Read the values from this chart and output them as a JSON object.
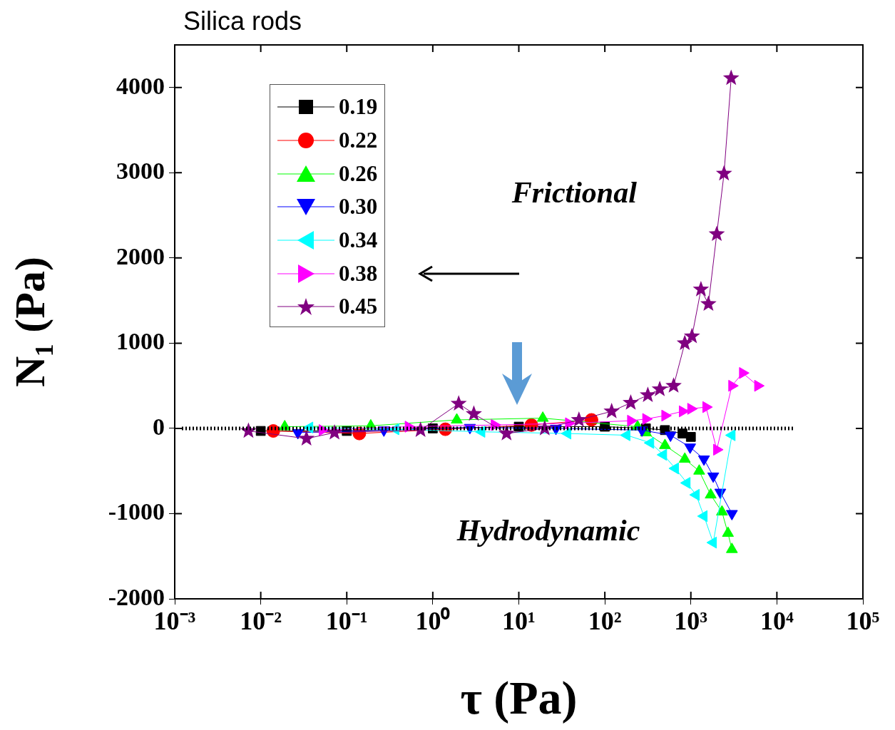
{
  "chart_data": {
    "type": "line",
    "title": "Silica rods",
    "xlabel": "τ (Pa)",
    "ylabel": "N₁ (Pa)",
    "log": "x",
    "xlim": [
      0.001,
      100000
    ],
    "xticks": [
      {
        "value": 0.001,
        "label": "10⁻³"
      },
      {
        "value": 0.01,
        "label": "10⁻²"
      },
      {
        "value": 0.1,
        "label": "10⁻¹"
      },
      {
        "value": 1,
        "label": "10⁰"
      },
      {
        "value": 10,
        "label": "10¹"
      },
      {
        "value": 100,
        "label": "10²"
      },
      {
        "value": 1000,
        "label": "10³"
      },
      {
        "value": 10000,
        "label": "10⁴"
      },
      {
        "value": 100000,
        "label": "10⁵"
      }
    ],
    "ylim": [
      -2000,
      4500
    ],
    "yticks": [
      -2000,
      -1000,
      0,
      1000,
      2000,
      3000,
      4000
    ],
    "grid": false,
    "legend": "top left",
    "line_style": "solid",
    "ref_lines": [
      {
        "axis": "y",
        "value": 0,
        "color": "#000000",
        "line_style": "dotted"
      }
    ],
    "annotations": [
      "Frictional",
      "Hydrodynamic"
    ],
    "series": [
      {
        "name": "0.19",
        "color": "#000000",
        "marker": "square",
        "x": [
          0.01,
          0.1,
          1,
          10,
          100,
          300,
          500,
          800,
          1000
        ],
        "values": [
          -30,
          -30,
          0,
          20,
          20,
          0,
          -20,
          -60,
          -100
        ]
      },
      {
        "name": "0.22",
        "color": "#ff0000",
        "marker": "circle",
        "x": [
          0.014,
          0.14,
          1.4,
          14,
          70
        ],
        "values": [
          -30,
          -60,
          -10,
          40,
          100
        ]
      },
      {
        "name": "0.26",
        "color": "#00ff00",
        "marker": "triangle",
        "x": [
          0.019,
          0.19,
          1.9,
          19,
          240,
          300,
          500,
          850,
          1250,
          1700,
          2300,
          2700,
          3000
        ],
        "values": [
          20,
          30,
          100,
          120,
          20,
          -50,
          -200,
          -360,
          -500,
          -780,
          -980,
          -1230,
          -1420
        ]
      },
      {
        "name": "0.30",
        "color": "#0000ff",
        "marker": "triangle-down",
        "x": [
          0.027,
          0.27,
          2.7,
          27,
          270,
          580,
          980,
          1420,
          1820,
          2200,
          3000
        ],
        "values": [
          -50,
          -20,
          10,
          0,
          -20,
          -80,
          -220,
          -360,
          -560,
          -750,
          -1000
        ]
      },
      {
        "name": "0.34",
        "color": "#00ffff",
        "marker": "triangle-left",
        "x": [
          0.037,
          0.37,
          3.7,
          37,
          180,
          340,
          480,
          660,
          900,
          1150,
          1420,
          1820,
          3000
        ],
        "values": [
          10,
          -10,
          -40,
          -60,
          -80,
          -170,
          -310,
          -470,
          -640,
          -780,
          -1030,
          -1340,
          -80
        ]
      },
      {
        "name": "0.38",
        "color": "#ff00ff",
        "marker": "triangle-right",
        "x": [
          0.052,
          0.52,
          5.2,
          38,
          200,
          300,
          500,
          800,
          1000,
          1500,
          2000,
          3000,
          4000,
          6000
        ],
        "values": [
          -20,
          20,
          40,
          60,
          90,
          110,
          150,
          200,
          230,
          250,
          -250,
          500,
          650,
          500
        ]
      },
      {
        "name": "0.45",
        "color": "#800080",
        "marker": "star",
        "x": [
          0.0072,
          0.034,
          0.072,
          0.72,
          2,
          3,
          7.2,
          20,
          50,
          120,
          200,
          316,
          435,
          630,
          850,
          1030,
          1310,
          1600,
          2000,
          2430,
          2940
        ],
        "values": [
          -30,
          -120,
          -50,
          -20,
          290,
          170,
          -60,
          0,
          100,
          200,
          300,
          390,
          460,
          500,
          1000,
          1080,
          1630,
          1460,
          2280,
          2990,
          4110
        ]
      }
    ]
  }
}
